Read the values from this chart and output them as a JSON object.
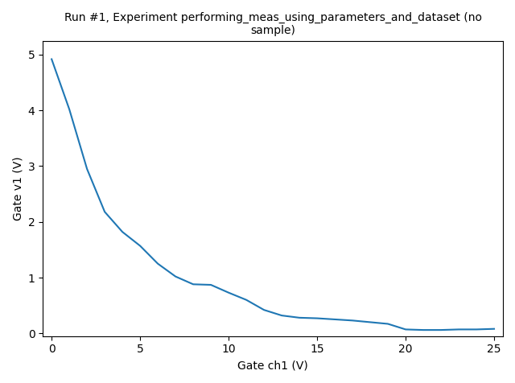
{
  "title": "Run #1, Experiment performing_meas_using_parameters_and_dataset (no\nsample)",
  "xlabel": "Gate ch1 (V)",
  "ylabel": "Gate v1 (V)",
  "line_color": "#1f77b4",
  "xlim": [
    -0.5,
    25.5
  ],
  "ylim": [
    -0.05,
    5.25
  ],
  "x_data": [
    0,
    1,
    2,
    3,
    4,
    5,
    6,
    7,
    8,
    9,
    10,
    11,
    12,
    13,
    14,
    15,
    16,
    17,
    18,
    19,
    20,
    21,
    22,
    23,
    24,
    25
  ],
  "y_data": [
    4.92,
    4.02,
    2.95,
    2.18,
    1.82,
    1.57,
    1.25,
    1.02,
    0.88,
    0.87,
    0.73,
    0.6,
    0.42,
    0.32,
    0.28,
    0.27,
    0.25,
    0.23,
    0.2,
    0.17,
    0.07,
    0.06,
    0.06,
    0.07,
    0.07,
    0.08
  ],
  "linewidth": 1.5,
  "title_fontsize": 10,
  "label_fontsize": 10
}
